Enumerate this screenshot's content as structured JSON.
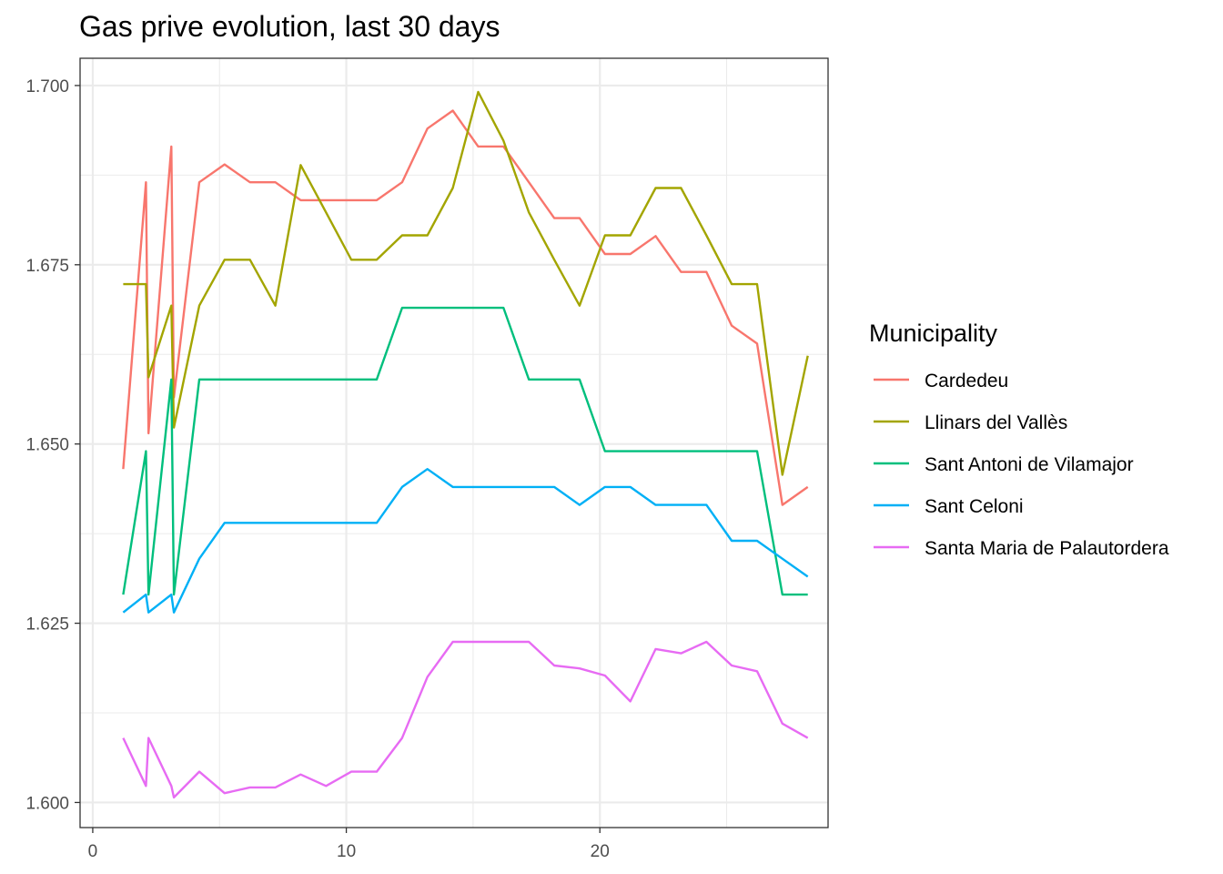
{
  "chart_data": {
    "type": "line",
    "title": "Gas prive evolution, last 30 days",
    "xlabel": "",
    "ylabel": "",
    "xlim": [
      -0.5,
      29
    ],
    "ylim": [
      1.5965,
      1.7038
    ],
    "x_ticks": [
      0,
      10,
      20
    ],
    "x_tick_labels": [
      "0",
      "10",
      "20"
    ],
    "y_ticks": [
      1.6,
      1.625,
      1.65,
      1.675,
      1.7
    ],
    "y_tick_labels": [
      "1.600",
      "1.625",
      "1.650",
      "1.675",
      "1.700"
    ],
    "grid": true,
    "legend": {
      "title": "Municipality",
      "position": "right"
    },
    "series": [
      {
        "name": "Cardedeu",
        "color": "#F8766D",
        "x": [
          1.2,
          2.1,
          2.2,
          3.1,
          3.2,
          4.2,
          5.2,
          6.2,
          7.2,
          8.2,
          9.2,
          10.2,
          11.2,
          12.2,
          13.2,
          14.2,
          15.2,
          16.2,
          17.2,
          18.2,
          19.2,
          20.2,
          21.2,
          22.2,
          23.2,
          24.2,
          25.2,
          26.2,
          27.2,
          28.2
        ],
        "values": [
          1.6465,
          1.6865,
          1.6515,
          1.6915,
          1.6565,
          1.6865,
          1.689,
          1.6865,
          1.6865,
          1.684,
          1.684,
          1.684,
          1.684,
          1.6865,
          1.694,
          1.6965,
          1.6915,
          1.6915,
          1.6865,
          1.6815,
          1.6815,
          1.6765,
          1.6765,
          1.679,
          1.674,
          1.674,
          1.6665,
          1.664,
          1.6415,
          1.644
        ]
      },
      {
        "name": "Llinars del Vallès",
        "color": "#A3A500",
        "x": [
          1.2,
          2.1,
          2.2,
          3.1,
          3.2,
          4.2,
          5.2,
          6.2,
          7.2,
          8.2,
          9.2,
          10.2,
          11.2,
          12.2,
          13.2,
          14.2,
          15.2,
          16.2,
          17.2,
          18.2,
          19.2,
          20.2,
          21.2,
          22.2,
          23.2,
          24.2,
          25.2,
          26.2,
          27.2,
          28.2
        ],
        "values": [
          1.6723,
          1.6723,
          1.6593,
          1.6693,
          1.6523,
          1.6693,
          1.6757,
          1.6757,
          1.6693,
          1.6889,
          1.6823,
          1.6757,
          1.6757,
          1.6791,
          1.6791,
          1.6857,
          1.6991,
          1.6923,
          1.6823,
          1.6757,
          1.6693,
          1.6791,
          1.6791,
          1.6857,
          1.6857,
          1.6791,
          1.6723,
          1.6723,
          1.6457,
          1.6623
        ]
      },
      {
        "name": "Sant Antoni de Vilamajor",
        "color": "#00BF7D",
        "x": [
          1.2,
          2.1,
          2.2,
          3.1,
          3.2,
          4.2,
          5.2,
          6.2,
          7.2,
          8.2,
          9.2,
          10.2,
          11.2,
          12.2,
          13.2,
          14.2,
          15.2,
          16.2,
          17.2,
          18.2,
          19.2,
          20.2,
          21.2,
          22.2,
          23.2,
          24.2,
          25.2,
          26.2,
          27.2,
          28.2
        ],
        "values": [
          1.629,
          1.649,
          1.629,
          1.659,
          1.629,
          1.659,
          1.659,
          1.659,
          1.659,
          1.659,
          1.659,
          1.659,
          1.659,
          1.669,
          1.669,
          1.669,
          1.669,
          1.669,
          1.659,
          1.659,
          1.659,
          1.649,
          1.649,
          1.649,
          1.649,
          1.649,
          1.649,
          1.649,
          1.629,
          1.629
        ]
      },
      {
        "name": "Sant Celoni",
        "color": "#00B0F6",
        "x": [
          1.2,
          2.1,
          2.2,
          3.1,
          3.2,
          4.2,
          5.2,
          6.2,
          7.2,
          8.2,
          9.2,
          10.2,
          11.2,
          12.2,
          13.2,
          14.2,
          15.2,
          16.2,
          17.2,
          18.2,
          19.2,
          20.2,
          21.2,
          22.2,
          23.2,
          24.2,
          25.2,
          26.2,
          27.2,
          28.2
        ],
        "values": [
          1.6265,
          1.629,
          1.6265,
          1.629,
          1.6265,
          1.634,
          1.639,
          1.639,
          1.639,
          1.639,
          1.639,
          1.639,
          1.639,
          1.644,
          1.6465,
          1.644,
          1.644,
          1.644,
          1.644,
          1.644,
          1.6415,
          1.644,
          1.644,
          1.6415,
          1.6415,
          1.6415,
          1.6365,
          1.6365,
          1.634,
          1.6315
        ]
      },
      {
        "name": "Santa Maria de Palautordera",
        "color": "#E76BF3",
        "x": [
          1.2,
          2.1,
          2.2,
          3.1,
          3.2,
          4.2,
          5.2,
          6.2,
          7.2,
          8.2,
          9.2,
          10.2,
          11.2,
          12.2,
          13.2,
          14.2,
          15.2,
          16.2,
          17.2,
          18.2,
          19.2,
          20.2,
          21.2,
          22.2,
          23.2,
          24.2,
          25.2,
          26.2,
          27.2,
          28.2
        ],
        "values": [
          1.609,
          1.6023,
          1.609,
          1.6023,
          1.6007,
          1.6043,
          1.6013,
          1.6021,
          1.6021,
          1.6039,
          1.6023,
          1.6043,
          1.6043,
          1.609,
          1.6175,
          1.6224,
          1.6224,
          1.6224,
          1.6224,
          1.6191,
          1.6187,
          1.6177,
          1.6141,
          1.6214,
          1.6208,
          1.6224,
          1.6191,
          1.6183,
          1.611,
          1.609
        ]
      }
    ]
  }
}
